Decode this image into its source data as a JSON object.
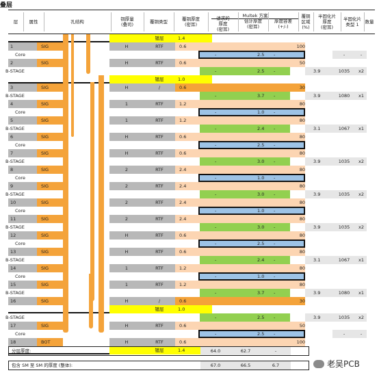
{
  "title": "叠层",
  "header": {
    "multek": "Multek 方案",
    "cols": [
      "层",
      "属性",
      "孔结构",
      "铜厚量\n(叠司)",
      "覆铜类型",
      "覆铜厚度\n(密耳)",
      "请求的\n厚度\n(密耳)",
      "估计厚度\n(密耳)",
      "厚度容差\n(+/-)",
      "覆铜\n区域\n(%)",
      "半固化片\n厚度\n(密耳)",
      "半固化片\n类型 1",
      "数量"
    ]
  },
  "colors": {
    "sig": "#f4a33a",
    "layer_num": "#b8b8b8",
    "core_blue": "#9dc3e6",
    "prepreg_green": "#92d050",
    "copper_pink": "#fcd5b2",
    "mask_yellow": "#ffff00"
  },
  "rows": [
    {
      "kind": "mask",
      "type": "镀层",
      "thick": "1.4"
    },
    {
      "kind": "layer",
      "n": "1",
      "attr": "SIG",
      "oz": "H",
      "ctype": "RTF",
      "cthick": "0.6",
      "area": "100"
    },
    {
      "kind": "core",
      "label": "Core",
      "est": "2.5",
      "pq": "-",
      "pqty": "-"
    },
    {
      "kind": "layer",
      "n": "2",
      "attr": "SIG",
      "oz": "H",
      "ctype": "RTF",
      "cthick": "0.6",
      "area": "50"
    },
    {
      "kind": "bstage",
      "label": "B-STAGE",
      "est": "2.5",
      "pt": "3.9",
      "ptype": "1035",
      "qty": "x2"
    },
    {
      "kind": "mask",
      "type": "镀层",
      "thick": "1.0"
    },
    {
      "kind": "layer",
      "n": "3",
      "attr": "SIG",
      "oz": "H",
      "ctype": "/",
      "cthick": "0.6",
      "area": "30",
      "orange": true
    },
    {
      "kind": "bstage",
      "label": "B-STAGE",
      "est": "3.7",
      "pt": "3.9",
      "ptype": "1080",
      "qty": "x1"
    },
    {
      "kind": "layer",
      "n": "4",
      "attr": "SIG",
      "oz": "1",
      "ctype": "RTF",
      "cthick": "1.2",
      "area": "80"
    },
    {
      "kind": "core",
      "label": "Core",
      "est": "1.0"
    },
    {
      "kind": "layer",
      "n": "5",
      "attr": "SIG",
      "oz": "1",
      "ctype": "RTF",
      "cthick": "1.2",
      "area": "80"
    },
    {
      "kind": "bstage",
      "label": "B-STAGE",
      "est": "2.4",
      "pt": "3.1",
      "ptype": "1067",
      "qty": "x1"
    },
    {
      "kind": "layer",
      "n": "6",
      "attr": "SIG",
      "oz": "H",
      "ctype": "RTF",
      "cthick": "0.6",
      "area": "80"
    },
    {
      "kind": "core",
      "label": "Core",
      "est": "2.5"
    },
    {
      "kind": "layer",
      "n": "7",
      "attr": "SIG",
      "oz": "H",
      "ctype": "RTF",
      "cthick": "0.6",
      "area": "80"
    },
    {
      "kind": "bstage",
      "label": "B-STAGE",
      "est": "3.0",
      "pt": "3.9",
      "ptype": "1035",
      "qty": "x2"
    },
    {
      "kind": "layer",
      "n": "8",
      "attr": "SIG",
      "oz": "2",
      "ctype": "RTF",
      "cthick": "2.4",
      "area": "80"
    },
    {
      "kind": "core",
      "label": "Core",
      "est": "1.0"
    },
    {
      "kind": "layer",
      "n": "9",
      "attr": "SIG",
      "oz": "2",
      "ctype": "RTF",
      "cthick": "2.4",
      "area": "80"
    },
    {
      "kind": "bstage",
      "label": "B-STAGE",
      "est": "3.0",
      "pt": "3.9",
      "ptype": "1035",
      "qty": "x2"
    },
    {
      "kind": "layer",
      "n": "10",
      "attr": "SIG",
      "oz": "2",
      "ctype": "RTF",
      "cthick": "2.4",
      "area": "80"
    },
    {
      "kind": "core",
      "label": "Core",
      "est": "1.0"
    },
    {
      "kind": "layer",
      "n": "11",
      "attr": "SIG",
      "oz": "2",
      "ctype": "RTF",
      "cthick": "2.4",
      "area": "80"
    },
    {
      "kind": "bstage",
      "label": "B-STAGE",
      "est": "3.0",
      "pt": "3.9",
      "ptype": "1035",
      "qty": "x2"
    },
    {
      "kind": "layer",
      "n": "12",
      "attr": "SIG",
      "oz": "H",
      "ctype": "RTF",
      "cthick": "0.6",
      "area": "80"
    },
    {
      "kind": "core",
      "label": "Core",
      "est": "2.5"
    },
    {
      "kind": "layer",
      "n": "13",
      "attr": "SIG",
      "oz": "H",
      "ctype": "RTF",
      "cthick": "0.6",
      "area": "80"
    },
    {
      "kind": "bstage",
      "label": "B-STAGE",
      "est": "2.4",
      "pt": "3.1",
      "ptype": "1067",
      "qty": "x1"
    },
    {
      "kind": "layer",
      "n": "14",
      "attr": "SIG",
      "oz": "1",
      "ctype": "RTF",
      "cthick": "1.2",
      "area": "80"
    },
    {
      "kind": "core",
      "label": "Core",
      "est": "1.0"
    },
    {
      "kind": "layer",
      "n": "15",
      "attr": "SIG",
      "oz": "1",
      "ctype": "RTF",
      "cthick": "1.2",
      "area": "80"
    },
    {
      "kind": "bstage",
      "label": "B-STAGE",
      "est": "3.7",
      "pt": "3.9",
      "ptype": "1080",
      "qty": "x1"
    },
    {
      "kind": "layer",
      "n": "16",
      "attr": "SIG",
      "oz": "H",
      "ctype": "/",
      "cthick": "0.6",
      "area": "30",
      "orange": true
    },
    {
      "kind": "mask",
      "type": "镀层",
      "thick": "1.0"
    },
    {
      "kind": "bstage",
      "label": "B-STAGE",
      "est": "2.5",
      "pt": "3.9",
      "ptype": "1035",
      "qty": "x2"
    },
    {
      "kind": "layer",
      "n": "17",
      "attr": "SIG",
      "oz": "H",
      "ctype": "RTF",
      "cthick": "0.6",
      "area": "50"
    },
    {
      "kind": "core",
      "label": "Core",
      "est": "2.5",
      "pq": "-",
      "pqty": "-"
    },
    {
      "kind": "layer",
      "n": "18",
      "attr": "BOT",
      "oz": "H",
      "ctype": "RTF",
      "cthick": "0.6",
      "area": "100"
    },
    {
      "kind": "mask",
      "type": "镀层",
      "thick": "1.4"
    }
  ],
  "summary": [
    {
      "label": "分层厚度:",
      "req": "64.0",
      "est": "62.7",
      "tol": "-"
    },
    {
      "label": "包含 SM 至 SM 的厚度 (整体):",
      "req": "67.0",
      "est": "66.5",
      "tol": "6.7"
    }
  ],
  "watermark": "老吴PCB"
}
